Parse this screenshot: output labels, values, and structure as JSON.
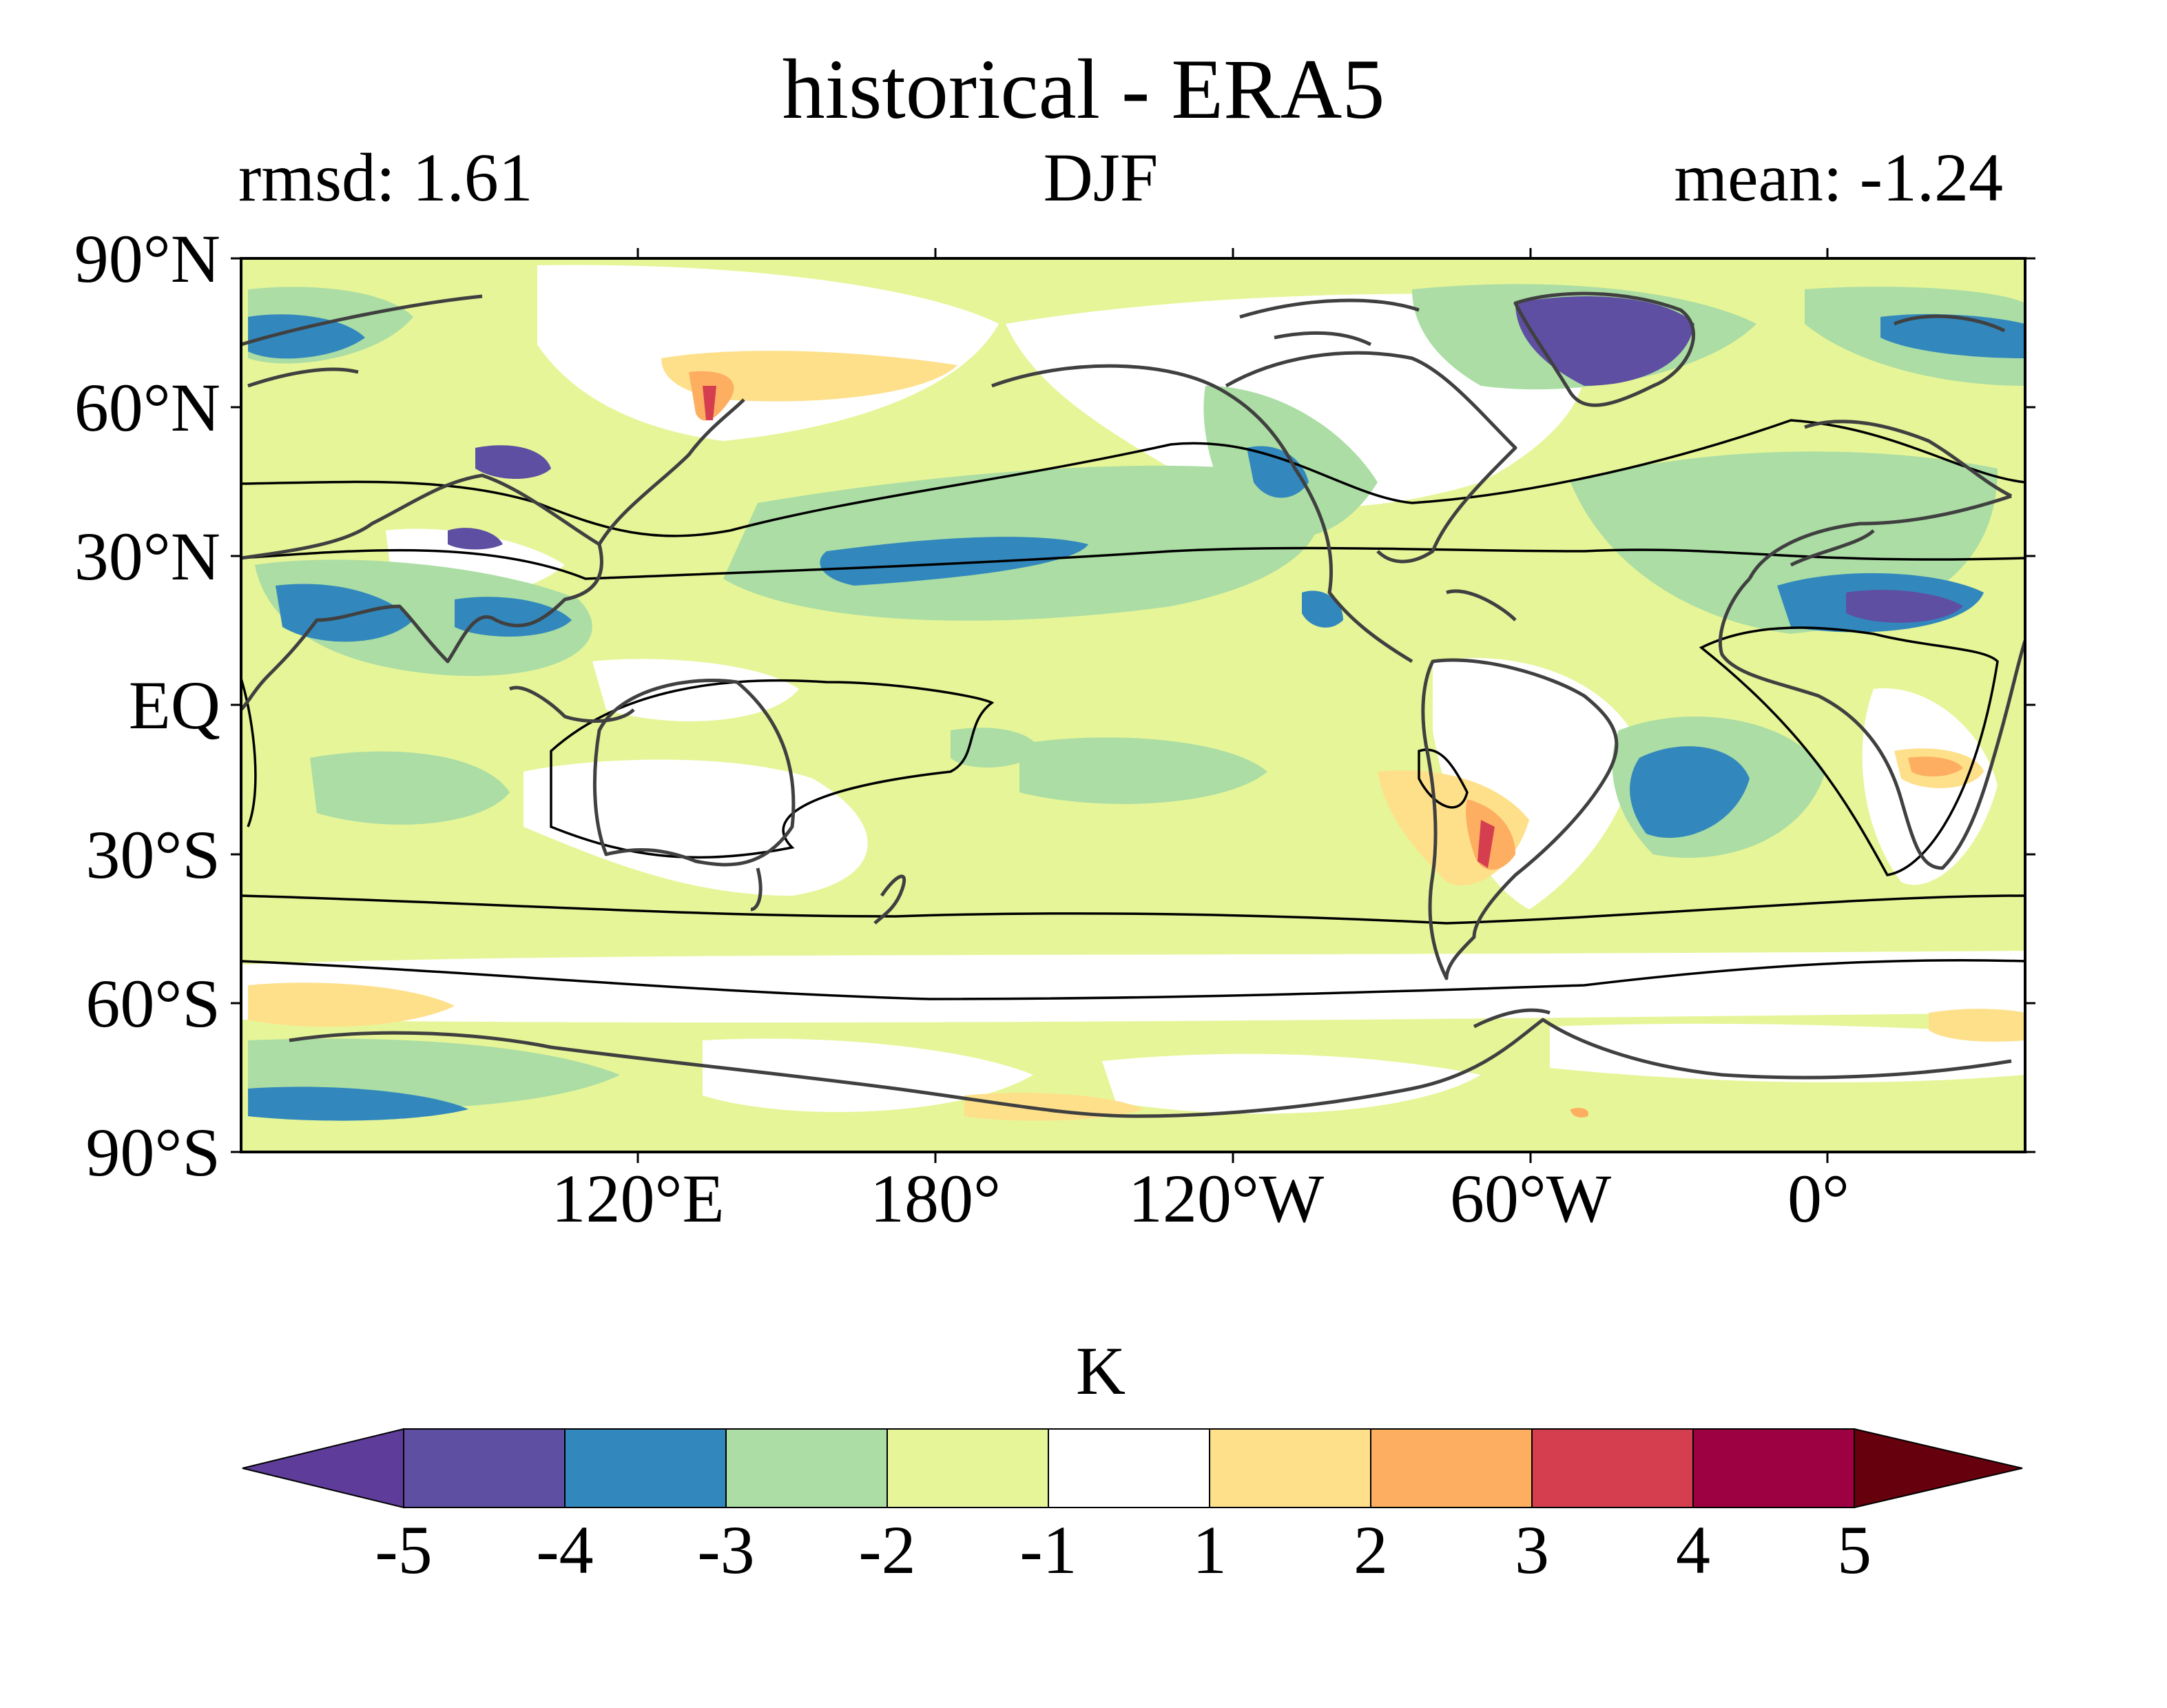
{
  "title": "historical - ERA5",
  "subtitle_left": "rmsd: 1.61",
  "subtitle_center": "DJF",
  "subtitle_right": "mean: -1.24",
  "lat_labels": [
    "90°N",
    "60°N",
    "30°N",
    "EQ",
    "30°S",
    "60°S",
    "90°S"
  ],
  "lon_labels": [
    "120°E",
    "180°",
    "120°W",
    "60°W",
    "0°"
  ],
  "colorbar": {
    "unit": "K",
    "ticks": [
      "-5",
      "-4",
      "-3",
      "-2",
      "-1",
      "1",
      "2",
      "3",
      "4",
      "5"
    ],
    "colors": [
      "#5e3c99",
      "#5e4fa2",
      "#3288bd",
      "#abdda4",
      "#e6f598",
      "#ffffff",
      "#fee08b",
      "#fdae61",
      "#d53e4f",
      "#9e0142",
      "#67000d"
    ]
  },
  "map": {
    "type": "contourf",
    "variable": "near-surface temperature bias",
    "season": "DJF",
    "projection": "PlateCarree",
    "lon_range": [
      40,
      400
    ],
    "lat_range": [
      -90,
      90
    ]
  }
}
